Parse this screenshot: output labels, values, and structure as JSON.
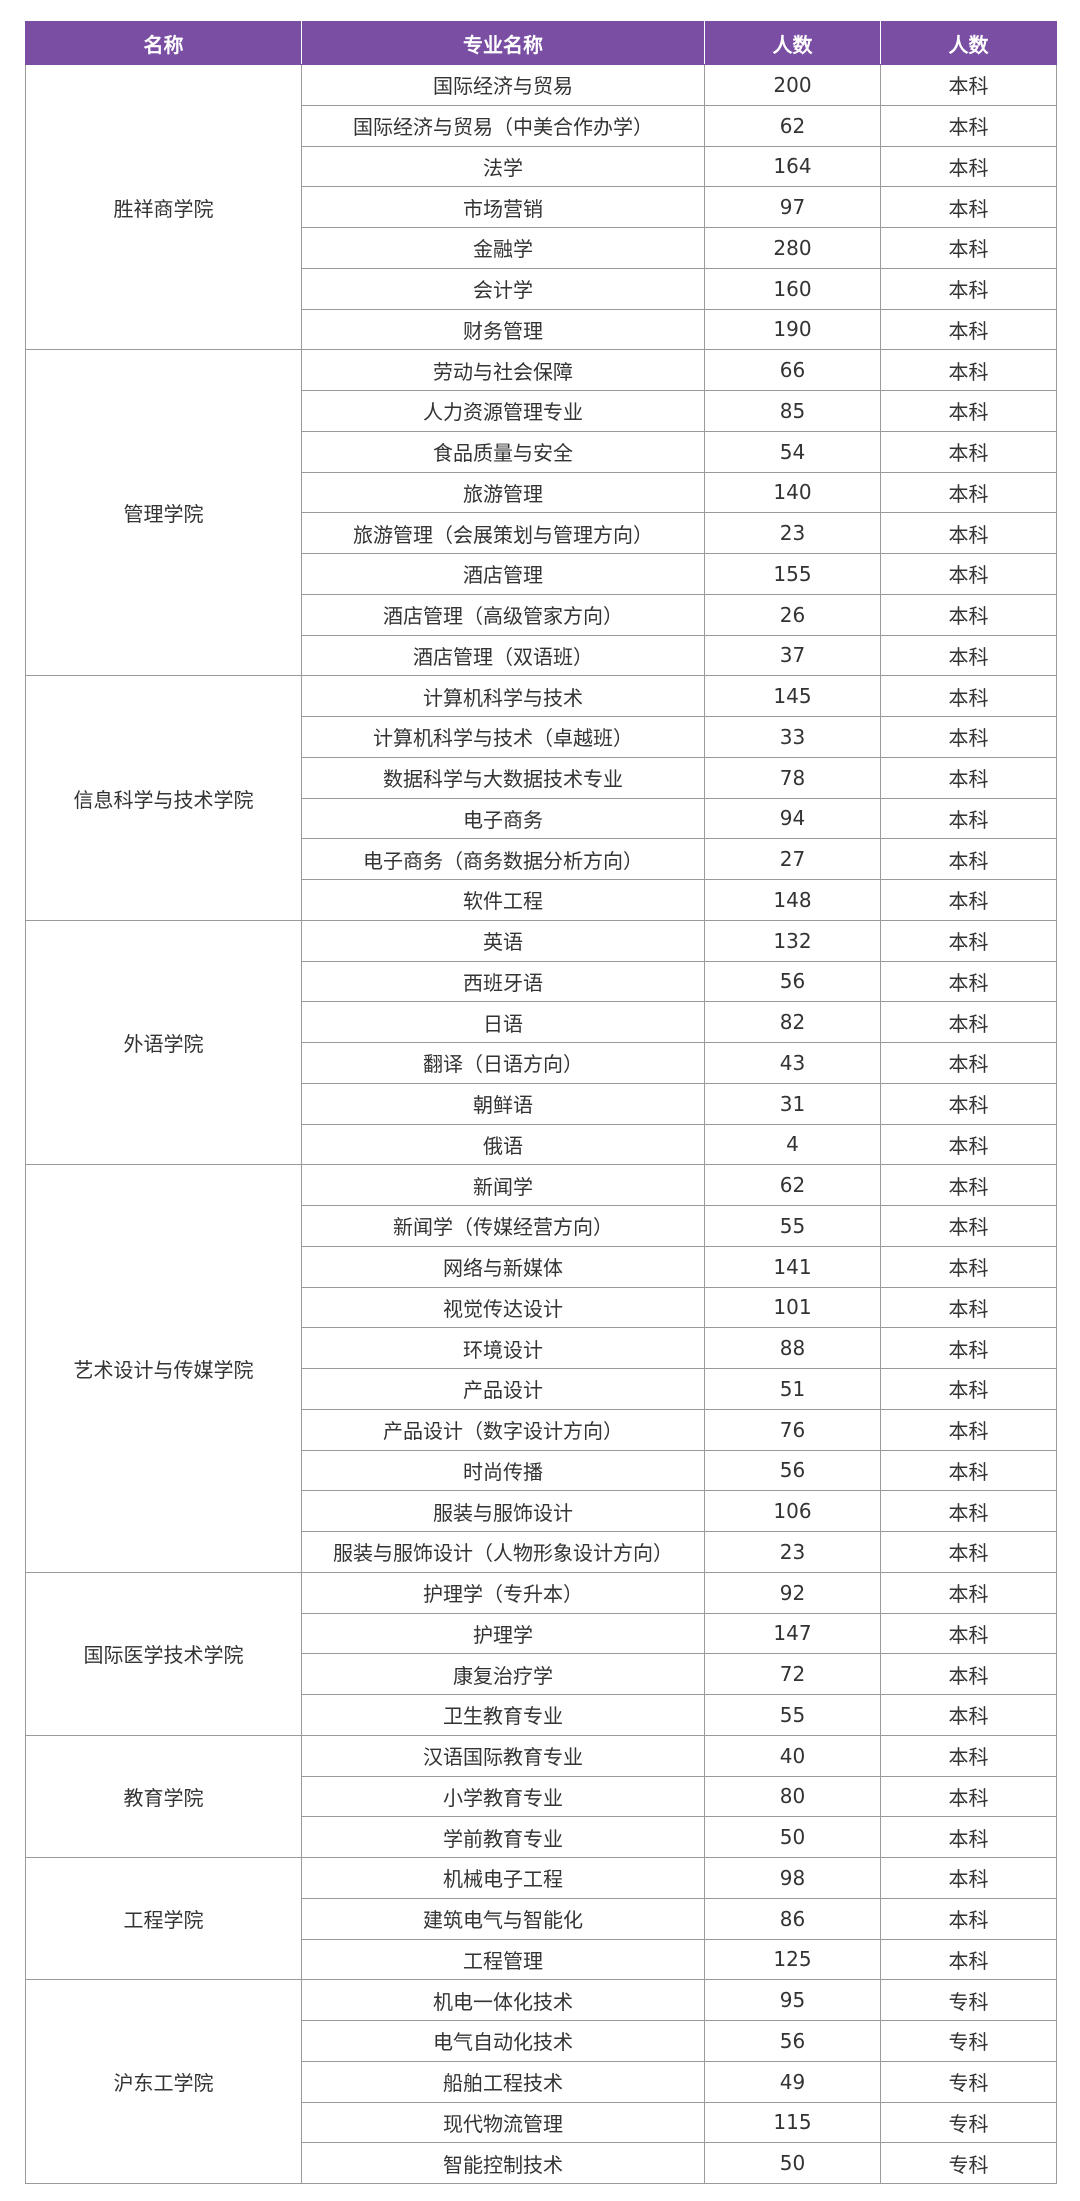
{
  "header": [
    "名称",
    "专业名称",
    "人数",
    "人数"
  ],
  "groups": [
    {
      "college": "胜祥商学院",
      "rows": [
        [
          "国际经济与贸易",
          200,
          "本科"
        ],
        [
          "国际经济与贸易（中美合作办学）",
          62,
          "本科"
        ],
        [
          "法学",
          164,
          "本科"
        ],
        [
          "市场营销",
          97,
          "本科"
        ],
        [
          "金融学",
          280,
          "本科"
        ],
        [
          "会计学",
          160,
          "本科"
        ],
        [
          "财务管理",
          190,
          "本科"
        ]
      ]
    },
    {
      "college": "管理学院",
      "rows": [
        [
          "劳动与社会保障",
          66,
          "本科"
        ],
        [
          "人力资源管理专业",
          85,
          "本科"
        ],
        [
          "食品质量与安全",
          54,
          "本科"
        ],
        [
          "旅游管理",
          140,
          "本科"
        ],
        [
          "旅游管理（会展策划与管理方向）",
          23,
          "本科"
        ],
        [
          "酒店管理",
          155,
          "本科"
        ],
        [
          "酒店管理（高级管家方向）",
          26,
          "本科"
        ],
        [
          "酒店管理（双语班）",
          37,
          "本科"
        ]
      ]
    },
    {
      "college": "信息科学与技术学院",
      "rows": [
        [
          "计算机科学与技术",
          145,
          "本科"
        ],
        [
          "计算机科学与技术（卓越班）",
          33,
          "本科"
        ],
        [
          "数据科学与大数据技术专业",
          78,
          "本科"
        ],
        [
          "电子商务",
          94,
          "本科"
        ],
        [
          "电子商务（商务数据分析方向）",
          27,
          "本科"
        ],
        [
          "软件工程",
          148,
          "本科"
        ]
      ]
    },
    {
      "college": "外语学院",
      "rows": [
        [
          "英语",
          132,
          "本科"
        ],
        [
          "西班牙语",
          56,
          "本科"
        ],
        [
          "日语",
          82,
          "本科"
        ],
        [
          "翻译（日语方向）",
          43,
          "本科"
        ],
        [
          "朝鲜语",
          31,
          "本科"
        ],
        [
          "俄语",
          4,
          "本科"
        ]
      ]
    },
    {
      "college": "艺术设计与传媒学院",
      "rows": [
        [
          "新闻学",
          62,
          "本科"
        ],
        [
          "新闻学（传媒经营方向）",
          55,
          "本科"
        ],
        [
          "网络与新媒体",
          141,
          "本科"
        ],
        [
          "视觉传达设计",
          101,
          "本科"
        ],
        [
          "环境设计",
          88,
          "本科"
        ],
        [
          "产品设计",
          51,
          "本科"
        ],
        [
          "产品设计（数字设计方向）",
          76,
          "本科"
        ],
        [
          "时尚传播",
          56,
          "本科"
        ],
        [
          "服装与服饰设计",
          106,
          "本科"
        ],
        [
          "服装与服饰设计（人物形象设计方向）",
          23,
          "本科"
        ]
      ]
    },
    {
      "college": "国际医学技术学院",
      "rows": [
        [
          "护理学（专升本）",
          92,
          "本科"
        ],
        [
          "护理学",
          147,
          "本科"
        ],
        [
          "康复治疗学",
          72,
          "本科"
        ],
        [
          "卫生教育专业",
          55,
          "本科"
        ]
      ]
    },
    {
      "college": "教育学院",
      "rows": [
        [
          "汉语国际教育专业",
          40,
          "本科"
        ],
        [
          "小学教育专业",
          80,
          "本科"
        ],
        [
          "学前教育专业",
          50,
          "本科"
        ]
      ]
    },
    {
      "college": "工程学院",
      "rows": [
        [
          "机械电子工程",
          98,
          "本科"
        ],
        [
          "建筑电气与智能化",
          86,
          "本科"
        ],
        [
          "工程管理",
          125,
          "本科"
        ]
      ]
    },
    {
      "college": "沪东工学院",
      "rows": [
        [
          "机电一体化技术",
          95,
          "专科"
        ],
        [
          "电气自动化技术",
          56,
          "专科"
        ],
        [
          "船舶工程技术",
          49,
          "专科"
        ],
        [
          "现代物流管理",
          115,
          "专科"
        ],
        [
          "智能控制技术",
          50,
          "专科"
        ]
      ]
    }
  ]
}
